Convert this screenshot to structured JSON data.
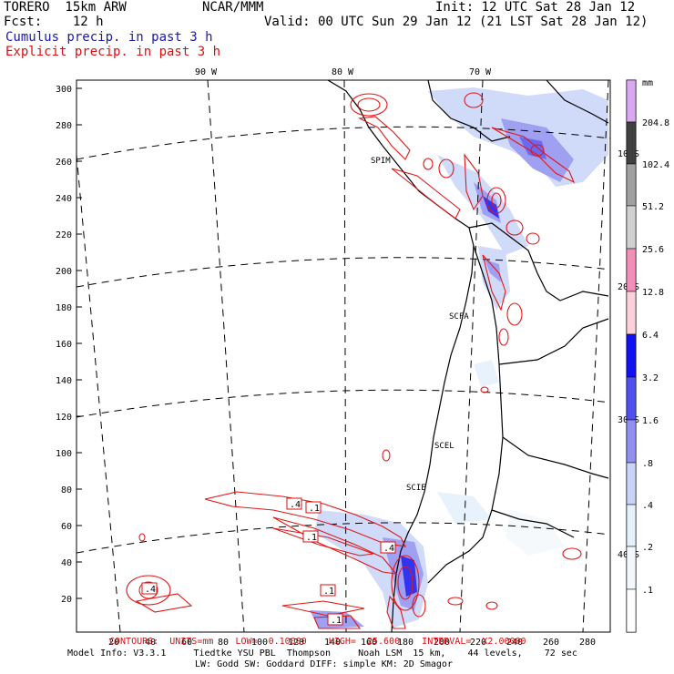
{
  "header": {
    "model": "TORERO  15km ARW",
    "center": "NCAR/MMM",
    "init": "Init: 12 UTC Sat 28 Jan 12",
    "fcst": "Fcst:    12 h",
    "valid": "Valid: 00 UTC Sun 29 Jan 12 (21 LST Sat 28 Jan 12)",
    "cumulus": "Cumulus precip. in past 3 h",
    "explicit": "Explicit precip. in past 3 h"
  },
  "map": {
    "lon_labels": [
      "90 W",
      "80 W",
      "70 W"
    ],
    "lat_labels": [
      "10 S",
      "20 S",
      "30 S",
      "40 S"
    ],
    "y_ticks": [
      "300",
      "280",
      "260",
      "240",
      "220",
      "200",
      "180",
      "160",
      "140",
      "120",
      "100",
      "80",
      "60",
      "40",
      "20"
    ],
    "x_ticks": [
      "20",
      "40",
      "60",
      "80",
      "100",
      "120",
      "140",
      "160",
      "180",
      "200",
      "220",
      "240",
      "260",
      "280"
    ],
    "stations": [
      "SPIM",
      "SCFA",
      "SCEL",
      "SCIE"
    ],
    "contour_labels": [
      ".4",
      ".1",
      ".1",
      ".4",
      ".1",
      ".1",
      ".4"
    ],
    "colors": {
      "explicit_contour": "#e01818",
      "coastline": "#000000",
      "gridline": "#000000"
    }
  },
  "colorbar": {
    "unit": "mm",
    "levels": [
      "204.8",
      "102.4",
      "51.2",
      "25.6",
      "12.8",
      "6.4",
      "3.2",
      "1.6",
      ".8",
      ".4",
      ".2",
      ".1"
    ],
    "colors": [
      "#d8a8f0",
      "#404040",
      "#a0a0a0",
      "#d0d0d0",
      "#f090b8",
      "#fcd0d8",
      "#1010f0",
      "#5050f0",
      "#9090f0",
      "#c8d4f8",
      "#e4f0fc",
      "#f4f8fc",
      "#ffffff"
    ]
  },
  "footer": {
    "contours": "CONTOURS:  UNITS=mm    LOW=  0.10000    HIGH=  25.600    INTERVAL=  X2.00000",
    "model_info_1": "Model Info: V3.3.1     Tiedtke YSU PBL  Thompson     Noah LSM  15 km,    44 levels,    72 sec",
    "model_info_2": "LW: Godd SW: Goddard DIFF: simple KM: 2D Smagor"
  }
}
